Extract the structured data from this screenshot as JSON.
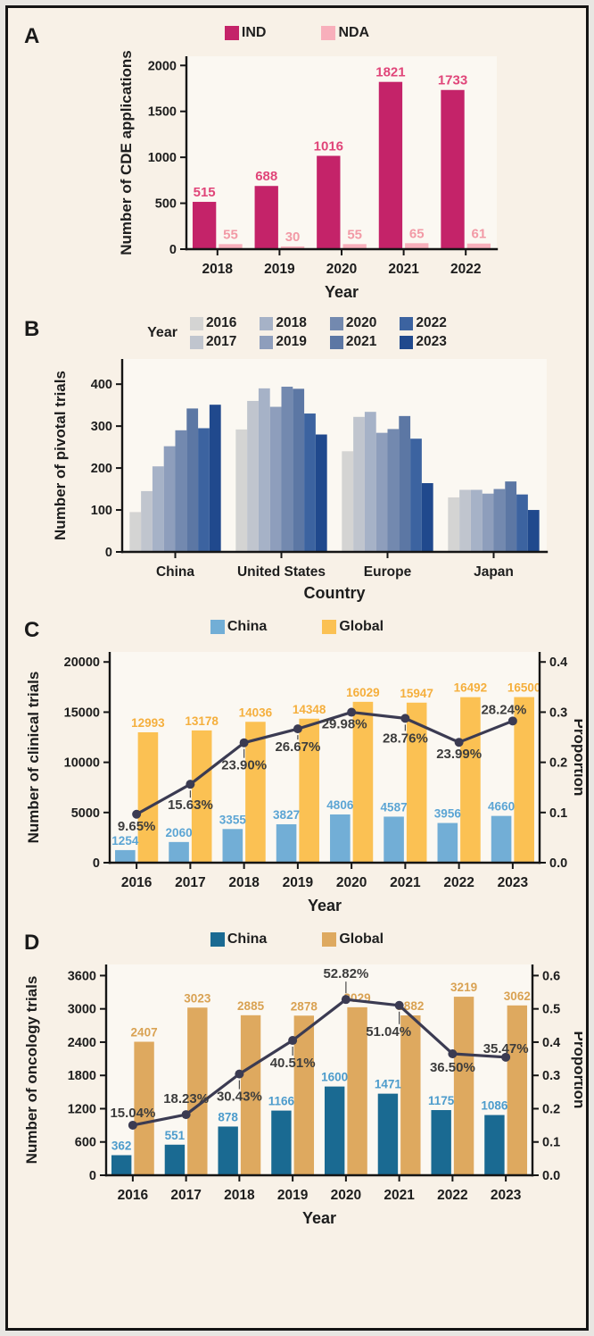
{
  "figure": {
    "outer_background": "#E8E6E2",
    "border_color": "#141414",
    "background": "#F8F1E7",
    "plot_background": "#FBF8F2",
    "axis_color": "#151515",
    "tick_text_color": "#1d1d1d"
  },
  "chart_data": [
    {
      "panel": "A",
      "type": "bar",
      "xlabel": "Year",
      "ylabel": "Number of CDE applications",
      "categories": [
        "2018",
        "2019",
        "2020",
        "2021",
        "2022"
      ],
      "ylim": [
        0,
        2100
      ],
      "ytick_values": [
        0,
        500,
        1000,
        1500,
        2000
      ],
      "ytick_labels": [
        "0",
        "500",
        "1000",
        "1500",
        "2000"
      ],
      "show_value_labels": true,
      "series": [
        {
          "name": "IND",
          "color": "#C42369",
          "label_color": "#E04579",
          "values": [
            515,
            688,
            1016,
            1821,
            1733
          ]
        },
        {
          "name": "NDA",
          "color": "#F8AFBB",
          "label_color": "#F29AA6",
          "values": [
            55,
            30,
            55,
            65,
            61
          ]
        }
      ]
    },
    {
      "panel": "B",
      "type": "bar",
      "xlabel": "Country",
      "ylabel": "Number of pivotal trials",
      "legend_title": "Year",
      "categories": [
        "China",
        "United States",
        "Europe",
        "Japan"
      ],
      "ylim": [
        0,
        460
      ],
      "ytick_values": [
        0,
        100,
        200,
        300,
        400
      ],
      "ytick_labels": [
        "0",
        "100",
        "200",
        "300",
        "400"
      ],
      "show_value_labels": false,
      "series": [
        {
          "name": "2016",
          "color": "#D4D4D3",
          "values": [
            95,
            292,
            240,
            130
          ]
        },
        {
          "name": "2017",
          "color": "#C0C5CE",
          "values": [
            145,
            360,
            322,
            148
          ]
        },
        {
          "name": "2018",
          "color": "#A6B2C7",
          "values": [
            204,
            390,
            334,
            148
          ]
        },
        {
          "name": "2019",
          "color": "#8E9EBC",
          "values": [
            252,
            346,
            284,
            139
          ]
        },
        {
          "name": "2020",
          "color": "#7389AF",
          "values": [
            290,
            394,
            293,
            150
          ]
        },
        {
          "name": "2021",
          "color": "#5C77A4",
          "values": [
            342,
            389,
            324,
            168
          ]
        },
        {
          "name": "2022",
          "color": "#3C63A0",
          "values": [
            295,
            330,
            270,
            137
          ]
        },
        {
          "name": "2023",
          "color": "#20498D",
          "values": [
            351,
            280,
            164,
            100
          ]
        }
      ]
    },
    {
      "panel": "C",
      "type": "bar-line",
      "xlabel": "Year",
      "ylabel": "Number of clinical trials",
      "categories": [
        "2016",
        "2017",
        "2018",
        "2019",
        "2020",
        "2021",
        "2022",
        "2023"
      ],
      "ylim": [
        0,
        21000
      ],
      "ytick_values": [
        0,
        5000,
        10000,
        15000,
        20000
      ],
      "ytick_labels": [
        "0",
        "5000",
        "10000",
        "15000",
        "20000"
      ],
      "show_value_labels": true,
      "series": [
        {
          "name": "China",
          "color": "#72AED6",
          "label_color": "#5CA5D4",
          "values": [
            1254,
            2060,
            3355,
            3827,
            4806,
            4587,
            3956,
            4660
          ]
        },
        {
          "name": "Global",
          "color": "#FBC153",
          "label_color": "#F5AF3D",
          "values": [
            12993,
            13178,
            14036,
            14348,
            16029,
            15947,
            16492,
            16500
          ]
        }
      ],
      "right_axis": {
        "label": "Proportion",
        "ylim": [
          0,
          0.42
        ],
        "tick_values": [
          0,
          0.1,
          0.2,
          0.3,
          0.4
        ],
        "tick_labels": [
          "0.0",
          "0.1",
          "0.2",
          "0.3",
          "0.4"
        ]
      },
      "line": {
        "name": "Proportion",
        "color": "#3B3B52",
        "values": [
          0.0965,
          0.1563,
          0.239,
          0.2667,
          0.2998,
          0.2876,
          0.2399,
          0.2824
        ],
        "labels": [
          "9.65%",
          "15.63%",
          "23.90%",
          "26.67%",
          "29.98%",
          "28.76%",
          "23.99%",
          "28.24%"
        ],
        "label_dy": [
          18,
          28,
          30,
          25,
          18,
          27,
          18,
          -8
        ],
        "label_dx": [
          0,
          0,
          0,
          0,
          -8,
          0,
          0,
          -10
        ]
      }
    },
    {
      "panel": "D",
      "type": "bar-line",
      "xlabel": "Year",
      "ylabel": "Number of oncology trials",
      "categories": [
        "2016",
        "2017",
        "2018",
        "2019",
        "2020",
        "2021",
        "2022",
        "2023"
      ],
      "ylim": [
        0,
        3800
      ],
      "ytick_values": [
        0,
        600,
        1200,
        1800,
        2400,
        3000,
        3600
      ],
      "ytick_labels": [
        "0",
        "600",
        "1200",
        "1800",
        "2400",
        "3000",
        "3600"
      ],
      "show_value_labels": true,
      "series": [
        {
          "name": "China",
          "color": "#1A6A92",
          "label_color": "#4D9CCC",
          "values": [
            362,
            551,
            878,
            1166,
            1600,
            1471,
            1175,
            1086
          ]
        },
        {
          "name": "Global",
          "color": "#DEA95F",
          "label_color": "#D9A253",
          "values": [
            2407,
            3023,
            2885,
            2878,
            3029,
            2882,
            3219,
            3062
          ]
        }
      ],
      "right_axis": {
        "label": "Proportion",
        "ylim": [
          0,
          0.6333
        ],
        "tick_values": [
          0,
          0.1,
          0.2,
          0.3,
          0.4,
          0.5,
          0.6
        ],
        "tick_labels": [
          "0.0",
          "0.1",
          "0.2",
          "0.3",
          "0.4",
          "0.5",
          "0.6"
        ]
      },
      "line": {
        "name": "Proportion",
        "color": "#3B3B52",
        "values": [
          0.1504,
          0.1823,
          0.3043,
          0.4051,
          0.5282,
          0.5104,
          0.365,
          0.3547
        ],
        "labels": [
          "15.04%",
          "18.23%",
          "30.43%",
          "40.51%",
          "52.82%",
          "51.04%",
          "36.50%",
          "35.47%"
        ],
        "label_dy": [
          -9,
          -13,
          30,
          30,
          -24,
          34,
          20,
          -5
        ],
        "label_dx": [
          0,
          0,
          0,
          0,
          0,
          -12,
          0,
          0
        ]
      }
    }
  ]
}
